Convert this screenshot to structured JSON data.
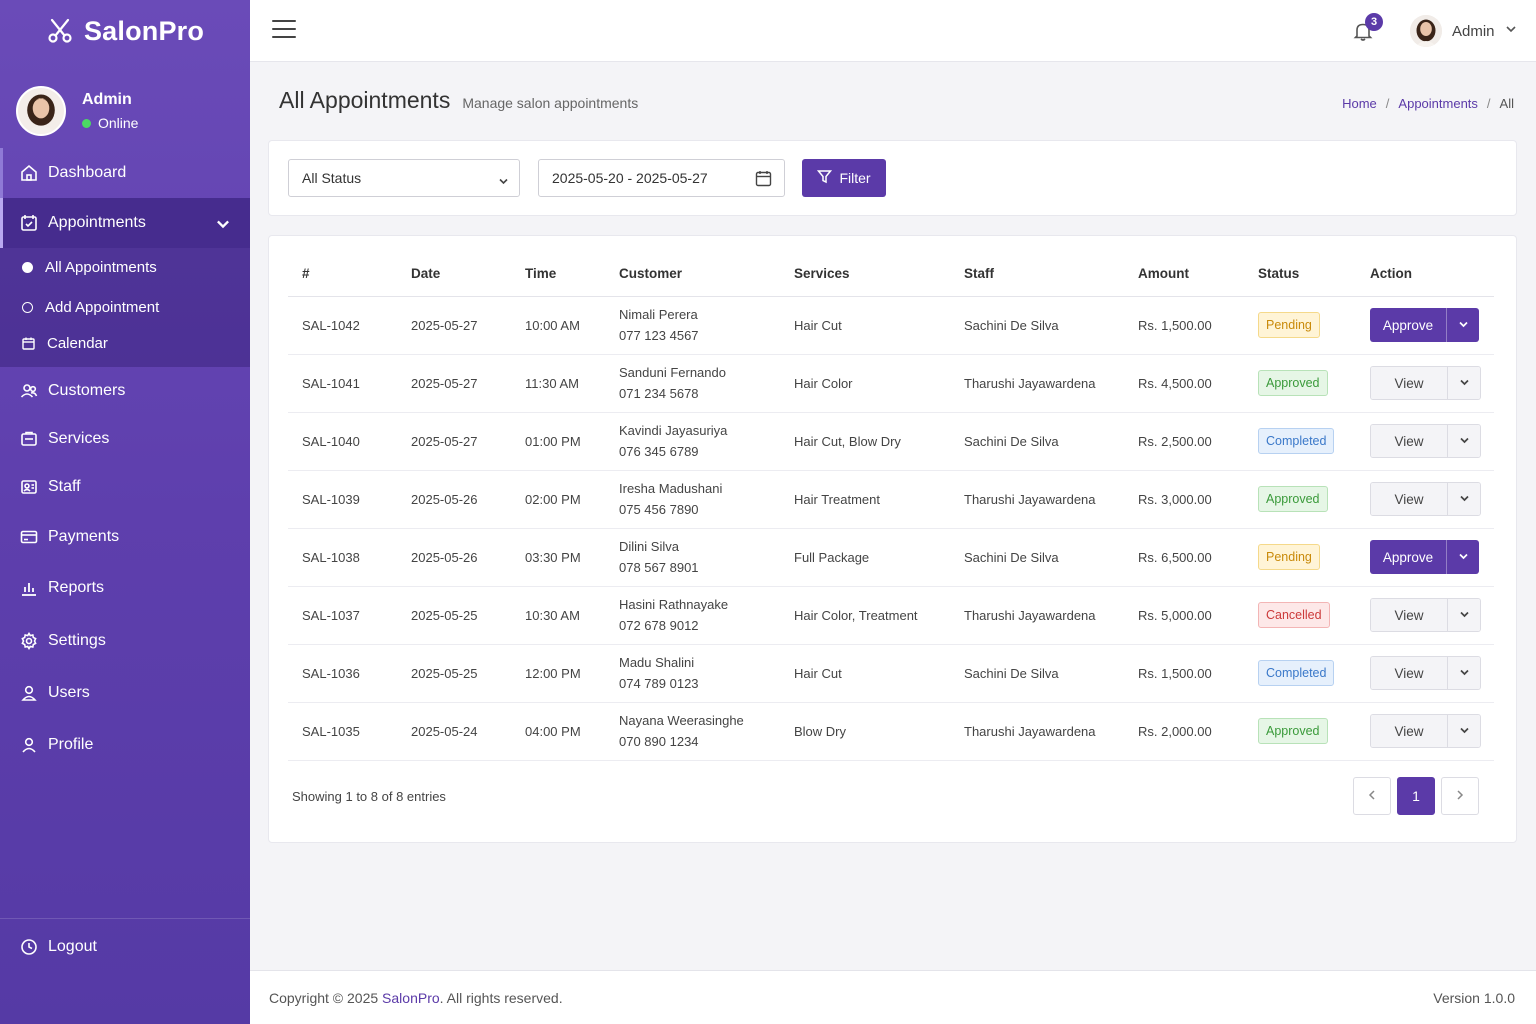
{
  "brand": {
    "name": "SalonPro"
  },
  "sidebar_user": {
    "name": "Admin",
    "status": "Online"
  },
  "nav": {
    "dashboard": "Dashboard",
    "appointments": "Appointments",
    "sub": {
      "all": "All Appointments",
      "add": "Add Appointment",
      "calendar": "Calendar"
    },
    "customers": "Customers",
    "services": "Services",
    "staff": "Staff",
    "payments": "Payments",
    "reports": "Reports",
    "settings": "Settings",
    "users": "Users",
    "profile": "Profile",
    "logout": "Logout"
  },
  "topbar": {
    "notification_count": "3",
    "user_name": "Admin"
  },
  "page": {
    "title": "All Appointments",
    "subtitle": "Manage salon appointments"
  },
  "breadcrumb": {
    "home": "Home",
    "appointments": "Appointments",
    "current": "All"
  },
  "filters": {
    "status": "All Status",
    "date_range": "2025-05-20 - 2025-05-27",
    "filter_label": "Filter"
  },
  "table": {
    "headers": [
      "#",
      "Date",
      "Time",
      "Customer",
      "Services",
      "Staff",
      "Amount",
      "Status",
      "Action"
    ],
    "rows": [
      {
        "id": "SAL-1042",
        "date": "2025-05-27",
        "time": "10:00 AM",
        "customer": "Nimali Perera",
        "phone": "077 123 4567",
        "services": "Hair Cut",
        "staff": "Sachini De Silva",
        "amount": "Rs. 1,500.00",
        "status": "Pending",
        "status_class": "pending",
        "action": "Approve",
        "action_style": "primary"
      },
      {
        "id": "SAL-1041",
        "date": "2025-05-27",
        "time": "11:30 AM",
        "customer": "Sanduni Fernando",
        "phone": "071 234 5678",
        "services": "Hair Color",
        "staff": "Tharushi Jayawardena",
        "amount": "Rs. 4,500.00",
        "status": "Approved",
        "status_class": "approved",
        "action": "View",
        "action_style": "light"
      },
      {
        "id": "SAL-1040",
        "date": "2025-05-27",
        "time": "01:00 PM",
        "customer": "Kavindi Jayasuriya",
        "phone": "076 345 6789",
        "services": "Hair Cut, Blow Dry",
        "staff": "Sachini De Silva",
        "amount": "Rs. 2,500.00",
        "status": "Completed",
        "status_class": "completed",
        "action": "View",
        "action_style": "light"
      },
      {
        "id": "SAL-1039",
        "date": "2025-05-26",
        "time": "02:00 PM",
        "customer": "Iresha Madushani",
        "phone": "075 456 7890",
        "services": "Hair Treatment",
        "staff": "Tharushi Jayawardena",
        "amount": "Rs. 3,000.00",
        "status": "Approved",
        "status_class": "approved",
        "action": "View",
        "action_style": "light"
      },
      {
        "id": "SAL-1038",
        "date": "2025-05-26",
        "time": "03:30 PM",
        "customer": "Dilini Silva",
        "phone": "078 567 8901",
        "services": "Full Package",
        "staff": "Sachini De Silva",
        "amount": "Rs. 6,500.00",
        "status": "Pending",
        "status_class": "pending",
        "action": "Approve",
        "action_style": "primary"
      },
      {
        "id": "SAL-1037",
        "date": "2025-05-25",
        "time": "10:30 AM",
        "customer": "Hasini Rathnayake",
        "phone": "072 678 9012",
        "services": "Hair Color, Treatment",
        "staff": "Tharushi Jayawardena",
        "amount": "Rs. 5,000.00",
        "status": "Cancelled",
        "status_class": "cancelled",
        "action": "View",
        "action_style": "light"
      },
      {
        "id": "SAL-1036",
        "date": "2025-05-25",
        "time": "12:00 PM",
        "customer": "Madu Shalini",
        "phone": "074 789 0123",
        "services": "Hair Cut",
        "staff": "Sachini De Silva",
        "amount": "Rs. 1,500.00",
        "status": "Completed",
        "status_class": "completed",
        "action": "View",
        "action_style": "light"
      },
      {
        "id": "SAL-1035",
        "date": "2025-05-24",
        "time": "04:00 PM",
        "customer": "Nayana Weerasinghe",
        "phone": "070 890 1234",
        "services": "Blow Dry",
        "staff": "Tharushi Jayawardena",
        "amount": "Rs. 2,000.00",
        "status": "Approved",
        "status_class": "approved",
        "action": "View",
        "action_style": "light"
      }
    ]
  },
  "pagination": {
    "showing": "Showing 1 to 8 of 8 entries",
    "current_page": "1"
  },
  "footer": {
    "copyright_prefix": "Copyright © 2025",
    "brand": "SalonPro",
    "copyright_suffix": ". All rights reserved.",
    "version": "Version 1.0.0"
  },
  "colors": {
    "primary": "#5b3aa8",
    "sidebar": "#6a4bb8"
  }
}
